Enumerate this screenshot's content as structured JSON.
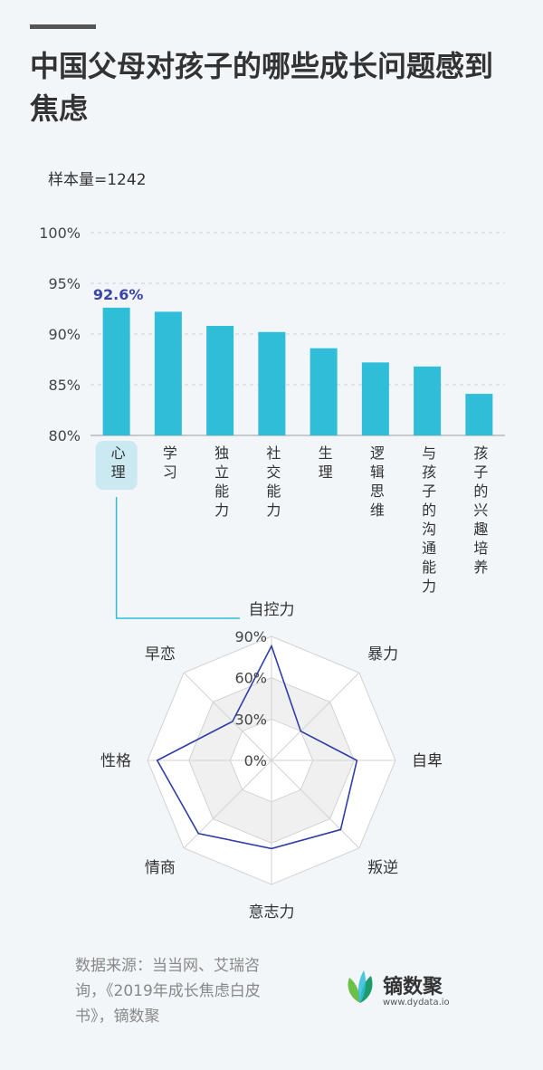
{
  "header": {
    "title": "中国父母对孩子的哪些成长问题感到焦虑",
    "sample_size": "样本量=1242"
  },
  "chart_data": [
    {
      "type": "bar",
      "categories": [
        "心理",
        "学习",
        "独立能力",
        "社交能力",
        "生理",
        "逻辑思维",
        "与孩子的沟通能力",
        "孩子的兴趣培养"
      ],
      "values": [
        92.6,
        92.2,
        90.8,
        90.2,
        88.6,
        87.2,
        86.8,
        84.1
      ],
      "ylim": [
        80,
        100
      ],
      "yticks": [
        "80%",
        "85%",
        "90%",
        "95%",
        "100%"
      ],
      "highlight": {
        "category": "心理",
        "label": "92.6%"
      },
      "grid": true,
      "colors": {
        "bar": "#2fbdd8",
        "highlight_label": "#3a45a8",
        "highlight_box": "#cbe9f0"
      }
    },
    {
      "type": "radar",
      "axes": [
        "自控力",
        "暴力",
        "自卑",
        "叛逆",
        "意志力",
        "情商",
        "性格",
        "早恋"
      ],
      "values": [
        83,
        30,
        62,
        71,
        64,
        75,
        83,
        40
      ],
      "rmax": 90,
      "rticks": [
        "0%",
        "30%",
        "60%",
        "90%"
      ],
      "colors": {
        "line": "#2e3ea6"
      }
    }
  ],
  "footer": {
    "source_line1": "数据来源：当当网、艾瑞咨",
    "source_line2": "询，《2019年成长焦虑白皮",
    "source_line3": "书》，镝数聚",
    "logo_name": "镝数聚",
    "logo_url": "www.dydata.io"
  }
}
